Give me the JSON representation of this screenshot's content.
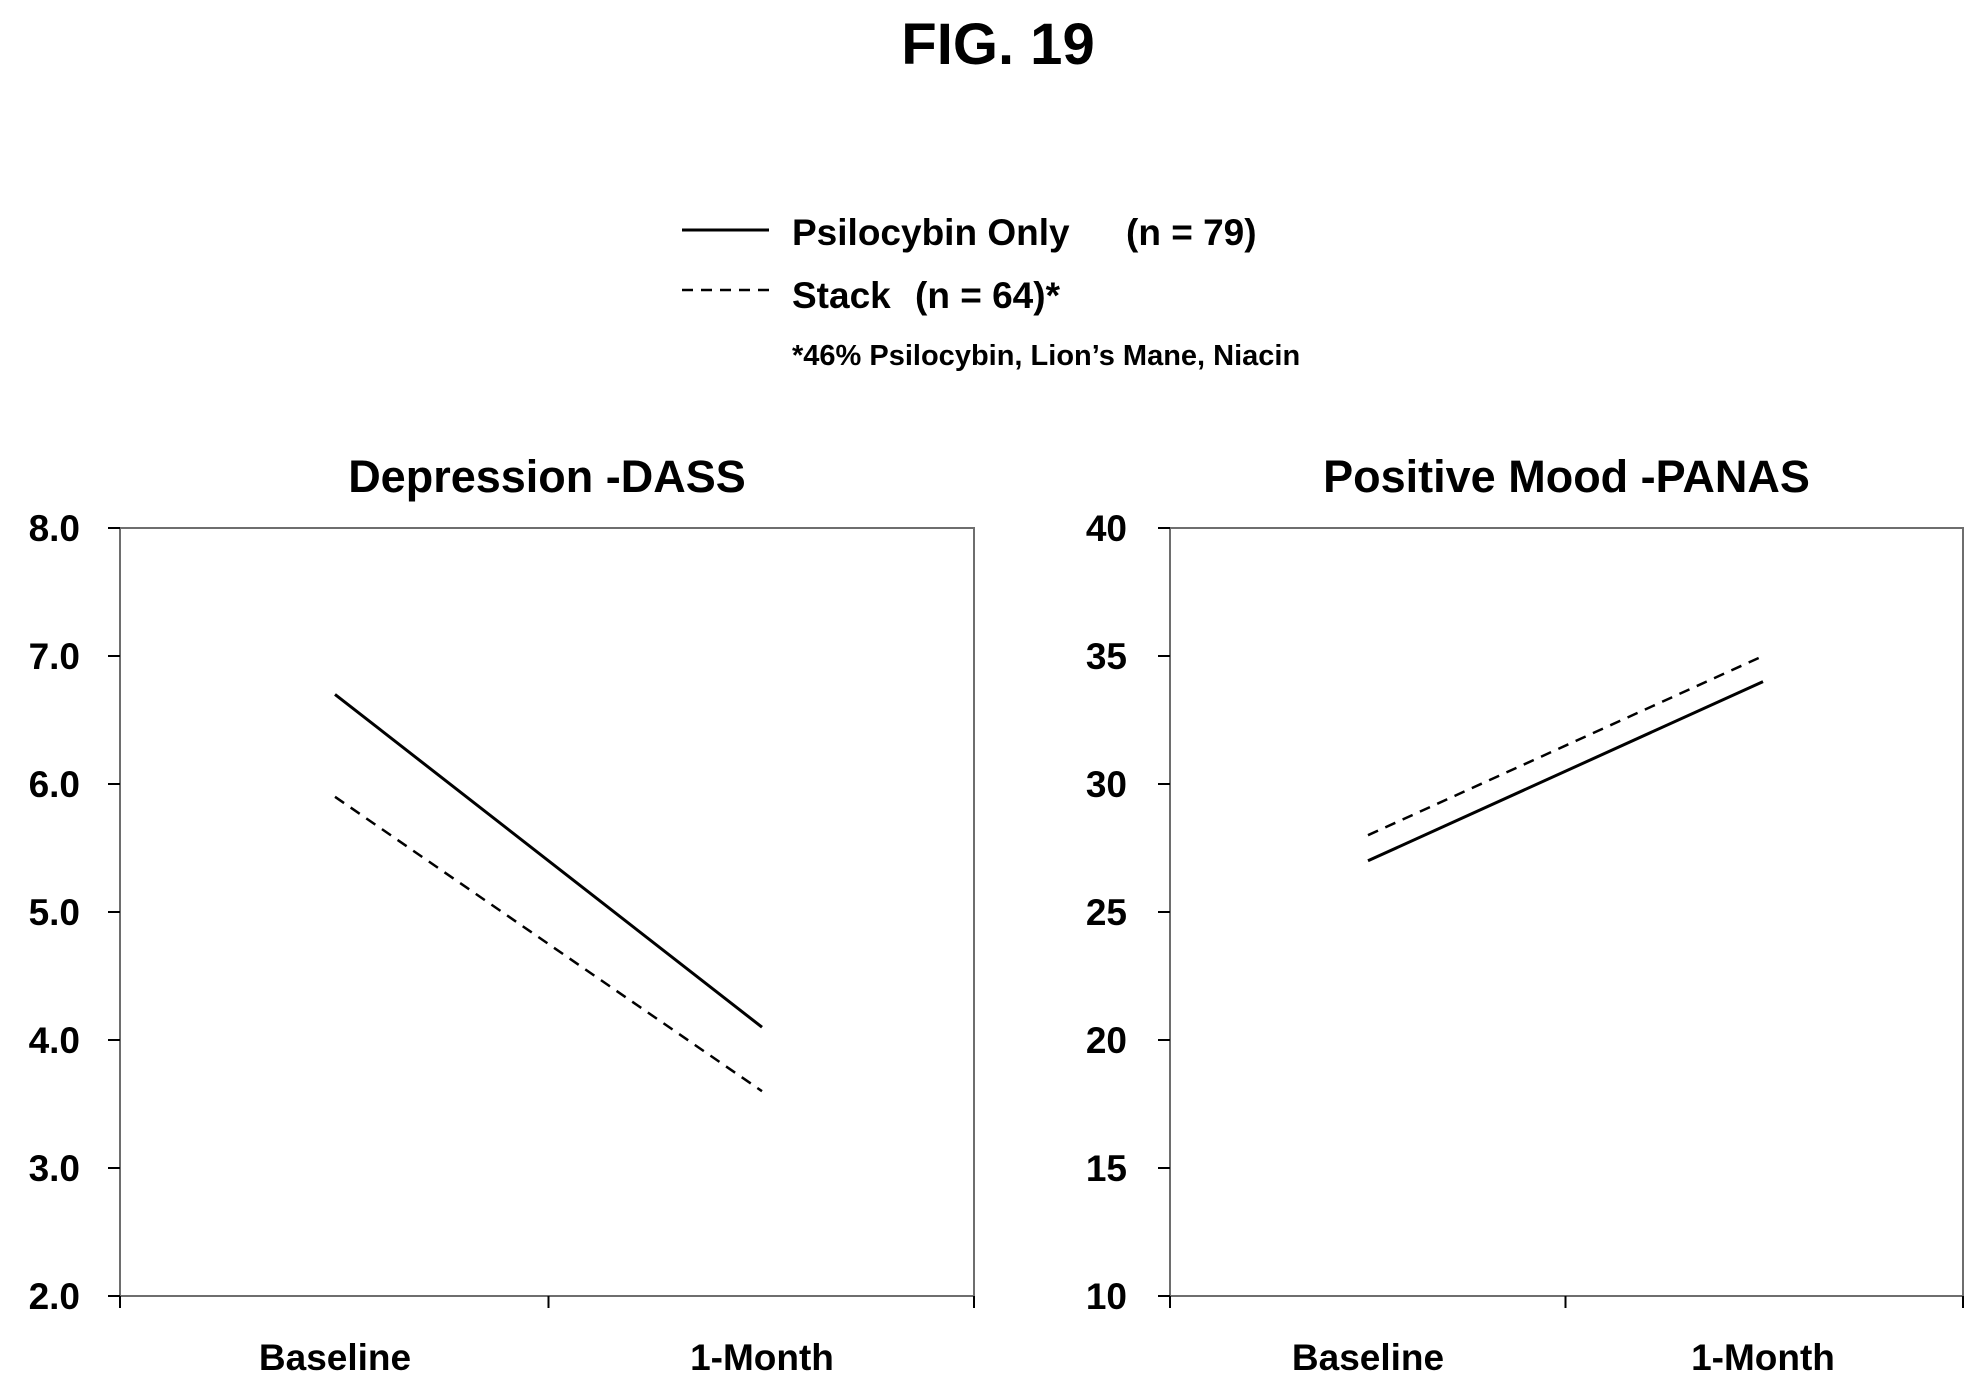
{
  "figure": {
    "label": "FIG. 19"
  },
  "legend": {
    "entries": [
      {
        "name": "Psilocybin Only",
        "count": "(n = 79)",
        "style": "solid"
      },
      {
        "name": "Stack",
        "count": "(n = 64)*",
        "style": "dashed"
      }
    ],
    "footnote": "*46% Psilocybin, Lion’s Mane, Niacin"
  },
  "chart_data": [
    {
      "type": "line",
      "title": "Depression -DASS",
      "xlabel": "",
      "ylabel": "",
      "categories": [
        "Baseline",
        "1-Month"
      ],
      "ylim": [
        2.0,
        8.0
      ],
      "yticks": [
        "2.0",
        "3.0",
        "4.0",
        "5.0",
        "6.0",
        "7.0",
        "8.0"
      ],
      "ytick_values": [
        2,
        3,
        4,
        5,
        6,
        7,
        8
      ],
      "grid": false,
      "series": [
        {
          "name": "Psilocybin Only",
          "values": [
            6.7,
            4.1
          ],
          "dash": "solid"
        },
        {
          "name": "Stack",
          "values": [
            5.9,
            3.6
          ],
          "dash": "dashed"
        }
      ]
    },
    {
      "type": "line",
      "title": "Positive Mood -PANAS",
      "xlabel": "",
      "ylabel": "",
      "categories": [
        "Baseline",
        "1-Month"
      ],
      "ylim": [
        10,
        40
      ],
      "yticks": [
        "10",
        "15",
        "20",
        "25",
        "30",
        "35",
        "40"
      ],
      "ytick_values": [
        10,
        15,
        20,
        25,
        30,
        35,
        40
      ],
      "grid": false,
      "series": [
        {
          "name": "Psilocybin Only",
          "values": [
            27,
            34
          ],
          "dash": "solid"
        },
        {
          "name": "Stack",
          "values": [
            28,
            35
          ],
          "dash": "dashed"
        }
      ]
    }
  ]
}
